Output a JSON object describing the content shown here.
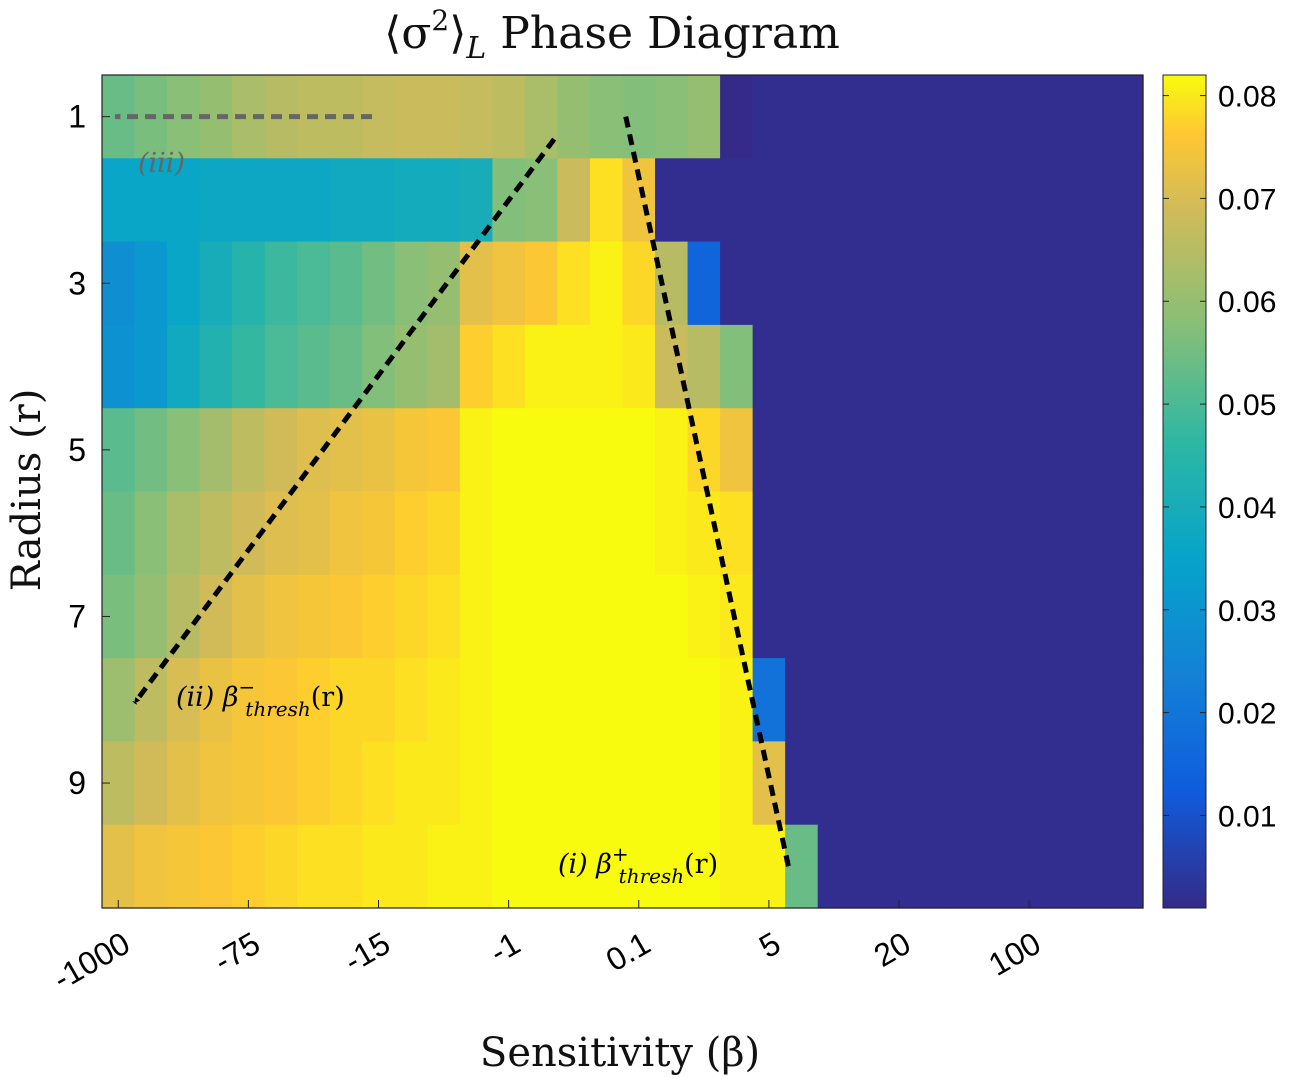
{
  "chart_data": {
    "type": "heatmap",
    "title": "⟨σ²⟩_L Phase Diagram",
    "title_parts": {
      "pre": "⟨σ",
      "sup": "2",
      "mid": "⟩",
      "sub": "L",
      "post": " Phase Diagram"
    },
    "xlabel": "Sensitivity (β)",
    "ylabel": "Radius (r)",
    "x_tick_labels": [
      "-1000",
      "-75",
      "-15",
      "-1",
      "0.1",
      "5",
      "20",
      "100"
    ],
    "y_tick_labels": [
      "1",
      "3",
      "5",
      "7",
      "9"
    ],
    "y_values": [
      1,
      2,
      3,
      4,
      5,
      6,
      7,
      8,
      9,
      10
    ],
    "colorbar_ticks": [
      "0.01",
      "0.02",
      "0.03",
      "0.04",
      "0.05",
      "0.06",
      "0.07",
      "0.08"
    ],
    "colorbar_values": [
      0.01,
      0.02,
      0.03,
      0.04,
      0.05,
      0.06,
      0.07,
      0.08
    ],
    "clim": [
      0.001,
      0.082
    ],
    "colormap": "parula",
    "columns": 32,
    "values": [
      [
        0.054,
        0.056,
        0.058,
        0.06,
        0.063,
        0.065,
        0.066,
        0.066,
        0.067,
        0.068,
        0.068,
        0.067,
        0.066,
        0.063,
        0.06,
        0.058,
        0.057,
        0.058,
        0.06,
        0.001,
        0.002,
        0.002,
        0.002,
        0.002,
        0.002,
        0.002,
        0.002,
        0.002,
        0.002,
        0.002,
        0.002,
        0.002
      ],
      [
        0.036,
        0.036,
        0.036,
        0.037,
        0.037,
        0.037,
        0.037,
        0.038,
        0.038,
        0.039,
        0.039,
        0.04,
        0.057,
        0.058,
        0.068,
        0.079,
        0.074,
        0.002,
        0.002,
        0.002,
        0.002,
        0.002,
        0.002,
        0.002,
        0.002,
        0.002,
        0.002,
        0.002,
        0.002,
        0.002,
        0.002,
        0.002
      ],
      [
        0.028,
        0.031,
        0.036,
        0.04,
        0.044,
        0.048,
        0.05,
        0.052,
        0.055,
        0.058,
        0.06,
        0.072,
        0.074,
        0.076,
        0.079,
        0.081,
        0.078,
        0.065,
        0.015,
        0.002,
        0.002,
        0.002,
        0.002,
        0.002,
        0.002,
        0.002,
        0.002,
        0.002,
        0.002,
        0.002,
        0.002,
        0.002
      ],
      [
        0.029,
        0.031,
        0.038,
        0.043,
        0.047,
        0.05,
        0.052,
        0.054,
        0.057,
        0.06,
        0.062,
        0.077,
        0.079,
        0.081,
        0.081,
        0.081,
        0.08,
        0.068,
        0.065,
        0.057,
        0.002,
        0.002,
        0.002,
        0.002,
        0.002,
        0.002,
        0.002,
        0.002,
        0.002,
        0.002,
        0.002,
        0.002
      ],
      [
        0.052,
        0.055,
        0.058,
        0.062,
        0.066,
        0.069,
        0.071,
        0.072,
        0.073,
        0.075,
        0.076,
        0.081,
        0.082,
        0.082,
        0.082,
        0.082,
        0.082,
        0.081,
        0.078,
        0.074,
        0.002,
        0.002,
        0.002,
        0.002,
        0.002,
        0.002,
        0.002,
        0.002,
        0.002,
        0.002,
        0.002,
        0.002
      ],
      [
        0.054,
        0.058,
        0.063,
        0.066,
        0.069,
        0.071,
        0.072,
        0.074,
        0.075,
        0.077,
        0.078,
        0.081,
        0.082,
        0.082,
        0.082,
        0.082,
        0.082,
        0.081,
        0.08,
        0.079,
        0.002,
        0.002,
        0.002,
        0.002,
        0.002,
        0.002,
        0.002,
        0.002,
        0.002,
        0.002,
        0.002,
        0.002
      ],
      [
        0.056,
        0.06,
        0.065,
        0.069,
        0.072,
        0.074,
        0.075,
        0.076,
        0.077,
        0.078,
        0.079,
        0.081,
        0.082,
        0.082,
        0.082,
        0.082,
        0.082,
        0.082,
        0.081,
        0.08,
        0.002,
        0.002,
        0.002,
        0.002,
        0.002,
        0.002,
        0.002,
        0.002,
        0.002,
        0.002,
        0.002,
        0.002
      ],
      [
        0.061,
        0.066,
        0.07,
        0.073,
        0.075,
        0.076,
        0.077,
        0.078,
        0.078,
        0.079,
        0.08,
        0.081,
        0.082,
        0.082,
        0.082,
        0.082,
        0.082,
        0.082,
        0.082,
        0.081,
        0.019,
        0.002,
        0.002,
        0.002,
        0.002,
        0.002,
        0.002,
        0.002,
        0.002,
        0.002,
        0.002,
        0.002
      ],
      [
        0.066,
        0.069,
        0.072,
        0.074,
        0.075,
        0.076,
        0.077,
        0.078,
        0.079,
        0.08,
        0.08,
        0.081,
        0.082,
        0.082,
        0.082,
        0.082,
        0.082,
        0.082,
        0.082,
        0.081,
        0.072,
        0.002,
        0.002,
        0.002,
        0.002,
        0.002,
        0.002,
        0.002,
        0.002,
        0.002,
        0.002,
        0.002
      ],
      [
        0.072,
        0.074,
        0.075,
        0.076,
        0.077,
        0.078,
        0.079,
        0.079,
        0.08,
        0.08,
        0.081,
        0.081,
        0.082,
        0.082,
        0.082,
        0.082,
        0.082,
        0.082,
        0.082,
        0.081,
        0.081,
        0.054,
        0.002,
        0.002,
        0.002,
        0.002,
        0.002,
        0.002,
        0.002,
        0.002,
        0.002,
        0.002
      ]
    ],
    "annotations": [
      {
        "label": "(iii)",
        "arrow_start": {
          "col": 8.3,
          "row": 1
        },
        "arrow_end": {
          "col": 0.4,
          "row": 1
        },
        "color": "#666666"
      },
      {
        "label": "(ii)",
        "beta": "β",
        "sup": "−",
        "sub": "thresh",
        "tail": "(r)",
        "arrow_start": {
          "col": 13.9,
          "row": 1.27
        },
        "arrow_end": {
          "col": 1.0,
          "row": 8.04
        },
        "color": "#000000"
      },
      {
        "label": "(i)",
        "beta": "β",
        "sup": "+",
        "sub": "thresh",
        "tail": "(r)",
        "arrow_start": {
          "col": 16.1,
          "row": 1.0
        },
        "arrow_end": {
          "col": 21.1,
          "row": 10.0
        },
        "color": "#000000"
      }
    ]
  }
}
